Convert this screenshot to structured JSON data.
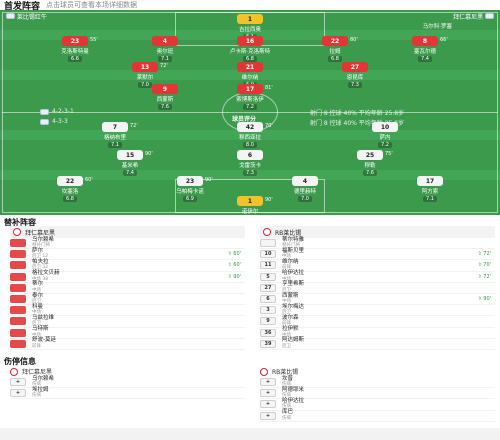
{
  "header": {
    "title": "首发阵容",
    "subtitle": "点击球员可查看本场详细数据"
  },
  "pitch": {
    "home_team_label": "拜仁慕尼黑",
    "away_team_label": "莱比锡红牛",
    "home_formation": "4-2-3-1",
    "away_formation": "4-3-3",
    "away_stat_line_1": "射门 8  控球 40%  平均年龄 25.8岁",
    "away_stat_line_2": "射门 8  控球 40%  平均年龄 25.8岁",
    "away_coach": "马尔科·罗塞",
    "center_label": "球员评分",
    "top_players": [
      {
        "num": "1",
        "name": "吉拉西奥",
        "rating": "6.1",
        "kit": "gk"
      },
      {
        "num": "23",
        "name": "克洛斯特曼",
        "rating": "6.6",
        "kit": "red",
        "tag": "55'"
      },
      {
        "num": "4",
        "name": "奥尔班",
        "rating": "7.1",
        "kit": "red"
      },
      {
        "num": "16",
        "name": "卢卡斯·克洛斯特",
        "rating": "6.8",
        "kit": "red"
      },
      {
        "num": "22",
        "name": "拉姆",
        "rating": "6.8",
        "kit": "red",
        "tag": "80'"
      },
      {
        "num": "8",
        "name": "塞瓦尔德",
        "rating": "7.4",
        "kit": "red",
        "tag": "66'"
      },
      {
        "num": "13",
        "name": "莱默尔",
        "rating": "7.0",
        "kit": "red",
        "tag": "72'"
      },
      {
        "num": "21",
        "name": "维尔纳",
        "rating": "6.9",
        "kit": "red"
      },
      {
        "num": "27",
        "name": "恩昆库",
        "rating": "7.3",
        "kit": "red"
      },
      {
        "num": "17",
        "name": "索博斯洛伊",
        "rating": "7.2",
        "kit": "red",
        "tag": "81'"
      },
      {
        "num": "9",
        "name": "西蒙斯",
        "rating": "7.6",
        "kit": "red"
      }
    ],
    "bottom_players": [
      {
        "num": "7",
        "name": "格纳布里",
        "rating": "7.1",
        "kit": "white",
        "tag": "72'"
      },
      {
        "num": "42",
        "name": "穆西亚拉",
        "rating": "8.0",
        "kit": "white",
        "tag": "70'"
      },
      {
        "num": "10",
        "name": "萨内",
        "rating": "7.2",
        "kit": "white"
      },
      {
        "num": "15",
        "name": "基米希",
        "rating": "7.4",
        "kit": "white",
        "tag": "90'"
      },
      {
        "num": "6",
        "name": "戈雷茨卡",
        "rating": "7.3",
        "kit": "white"
      },
      {
        "num": "25",
        "name": "穆勒",
        "rating": "7.6",
        "kit": "white",
        "tag": "75'"
      },
      {
        "num": "22",
        "name": "坎塞洛",
        "rating": "6.8",
        "kit": "white",
        "tag": "60'"
      },
      {
        "num": "23",
        "name": "乌帕梅卡诺",
        "rating": "6.9",
        "kit": "white",
        "tag": "90'"
      },
      {
        "num": "4",
        "name": "德里赫特",
        "rating": "7.0",
        "kit": "white"
      },
      {
        "num": "17",
        "name": "阿方索",
        "rating": "7.1",
        "kit": "white"
      },
      {
        "num": "1",
        "name": "诺伊尔",
        "rating": "7.2",
        "kit": "gk",
        "tag": "90'"
      }
    ]
  },
  "subs": {
    "title": "替补阵容",
    "home_team": "拜仁慕尼黑",
    "away_team": "RB莱比锡",
    "home": [
      {
        "num": "",
        "name": "乌尔赖希",
        "pos": "替补门将",
        "note": ""
      },
      {
        "num": "",
        "name": "萨尔",
        "pos": "后卫 12",
        "note": "60'"
      },
      {
        "num": "",
        "name": "帕夫拉",
        "pos": "后卫 32",
        "note": "60'"
      },
      {
        "num": "",
        "name": "格拉文贝赫",
        "pos": "中场 38",
        "note": "90'"
      },
      {
        "num": "",
        "name": "蒂尔",
        "pos": "中场",
        "note": ""
      },
      {
        "num": "",
        "name": "泰尔",
        "pos": "后卫",
        "note": ""
      },
      {
        "num": "",
        "name": "科曼",
        "pos": "中场",
        "note": ""
      },
      {
        "num": "",
        "name": "马兹拉维",
        "pos": "后卫",
        "note": ""
      },
      {
        "num": "",
        "name": "马特斯",
        "pos": "中场",
        "note": ""
      },
      {
        "num": "",
        "name": "舒波-莫廷",
        "pos": "前锋",
        "note": ""
      }
    ],
    "away": [
      {
        "num": "",
        "name": "蒂尔特雅",
        "pos": "替补门将",
        "note": ""
      },
      {
        "num": "10",
        "name": "福斯贝里",
        "pos": "中场",
        "note": "72'"
      },
      {
        "num": "11",
        "name": "维尔纳",
        "pos": "前锋",
        "note": "70'"
      },
      {
        "num": "5",
        "name": "哈伊达拉",
        "pos": "中场",
        "note": "72'"
      },
      {
        "num": "27",
        "name": "亨里希斯",
        "pos": "后卫",
        "note": ""
      },
      {
        "num": "6",
        "name": "西蒙斯",
        "pos": "中场",
        "note": "90'"
      },
      {
        "num": "3",
        "name": "埃尔梅达",
        "pos": "后卫",
        "note": ""
      },
      {
        "num": "9",
        "name": "波尔森",
        "pos": "前锋",
        "note": ""
      },
      {
        "num": "36",
        "name": "拉伊默",
        "pos": "中场",
        "note": ""
      },
      {
        "num": "39",
        "name": "阿达姆斯",
        "pos": "后卫",
        "note": ""
      }
    ]
  },
  "injuries": {
    "title": "伤停信息",
    "home_team": "拜仁慕尼黑",
    "away_team": "RB莱比锡",
    "home": [
      {
        "name": "乌尔赖希",
        "pos": "伤病"
      },
      {
        "name": "埃拉姆",
        "pos": "伤病"
      }
    ],
    "away": [
      {
        "name": "坎普",
        "pos": "伤病"
      },
      {
        "name": "阿德耶米",
        "pos": "伤病"
      },
      {
        "name": "哈伊达拉",
        "pos": "伤病"
      },
      {
        "name": "库巴",
        "pos": "伤病"
      }
    ]
  }
}
